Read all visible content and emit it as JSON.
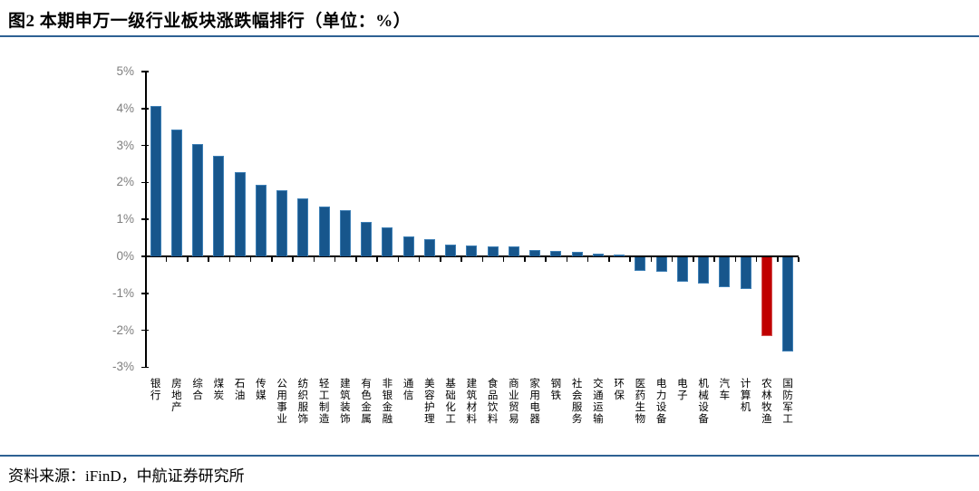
{
  "title": "图2  本期申万一级行业板块涨跌幅排行（单位：%）",
  "source": "资料来源：iFinD，中航证券研究所",
  "colors": {
    "bar": "#17568c",
    "bar_edge": "#3d7fb5",
    "highlight": "#c00000",
    "rule": "#2e6193",
    "axis": "#000000",
    "ytick_label": "#7f7f7f"
  },
  "chart_data": {
    "type": "bar",
    "title": "图2 本期申万一级行业板块涨跌幅排行（单位：%）",
    "xlabel": "",
    "ylabel": "",
    "unit": "%",
    "ylim": [
      -3,
      5
    ],
    "grid": false,
    "legend_position": "none",
    "bar_orientation": "vertical",
    "highlight_index": 29,
    "yticks": [
      {
        "value": 5,
        "label": "5%"
      },
      {
        "value": 4,
        "label": "4%"
      },
      {
        "value": 3,
        "label": "3%"
      },
      {
        "value": 2,
        "label": "2%"
      },
      {
        "value": 1,
        "label": "1%"
      },
      {
        "value": 0,
        "label": "0%"
      },
      {
        "value": -1,
        "label": "-1%"
      },
      {
        "value": -2,
        "label": "-2%"
      },
      {
        "value": -3,
        "label": "-3%"
      }
    ],
    "categories": [
      "银行",
      "房地产",
      "综合",
      "煤炭",
      "石油",
      "传媒",
      "公用事业",
      "纺织服饰",
      "轻工制造",
      "建筑装饰",
      "有色金属",
      "非银金融",
      "通信",
      "美容护理",
      "基础化工",
      "建筑材料",
      "食品饮料",
      "商业贸易",
      "家用电器",
      "钢铁",
      "社会服务",
      "交通运输",
      "环保",
      "医药生物",
      "电力设备",
      "电子",
      "机械设备",
      "汽车",
      "计算机",
      "农林牧渔",
      "国防军工"
    ],
    "values": [
      4.06,
      3.42,
      3.05,
      2.71,
      2.27,
      1.93,
      1.78,
      1.57,
      1.35,
      1.26,
      0.92,
      0.79,
      0.55,
      0.46,
      0.32,
      0.29,
      0.27,
      0.26,
      0.18,
      0.15,
      0.12,
      0.07,
      0.04,
      -0.37,
      -0.38,
      -0.66,
      -0.72,
      -0.8,
      -0.85,
      -2.13,
      -2.55
    ]
  }
}
